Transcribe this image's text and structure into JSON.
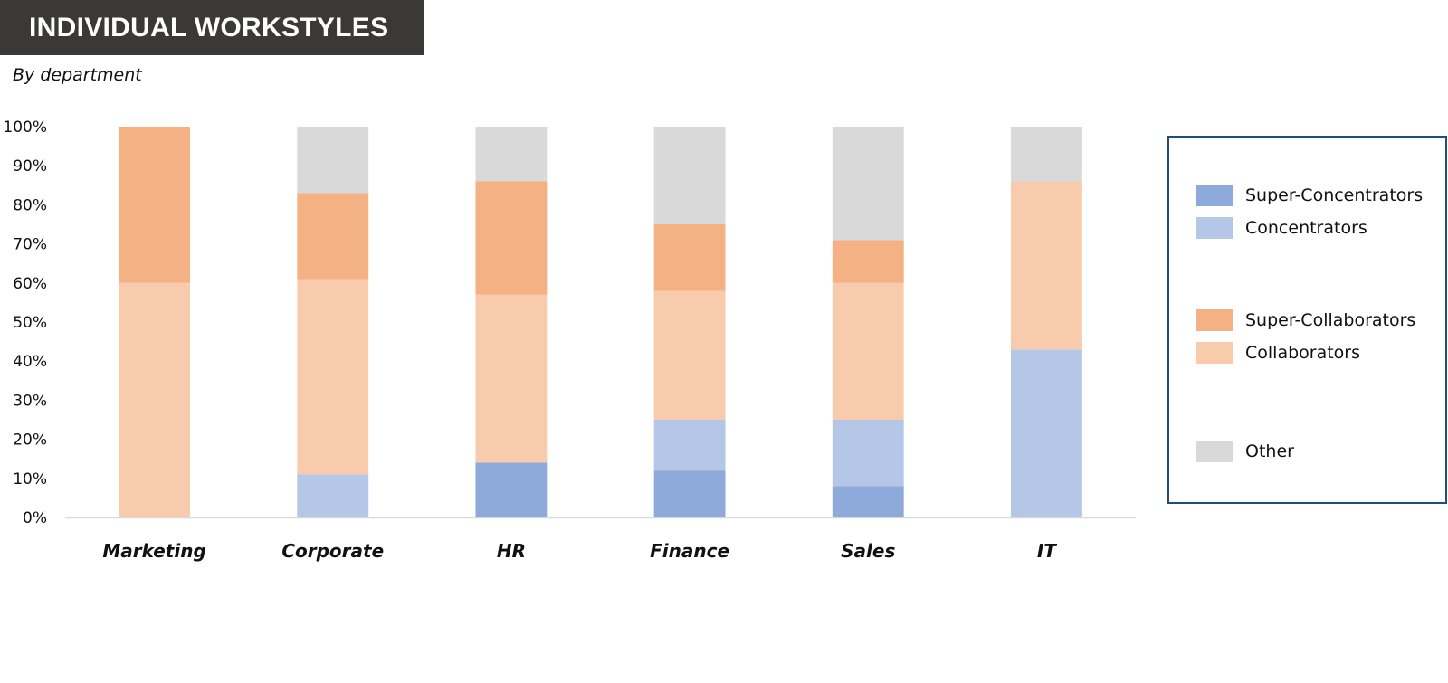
{
  "header": {
    "title": "INDIVIDUAL WORKSTYLES",
    "subtitle": "By department"
  },
  "colors": {
    "Super-Concentrators": "#8eaadb",
    "Concentrators": "#b4c7e7",
    "Super-Collaborators": "#f4b183",
    "Collaborators": "#f8cbad",
    "Other": "#d9d9d9",
    "title_bg": "#3b3936",
    "legend_border": "#1f4e79"
  },
  "chart_data": {
    "type": "bar",
    "stacked": true,
    "categories": [
      "Marketing",
      "Corporate",
      "HR",
      "Finance",
      "Sales",
      "IT"
    ],
    "series": [
      {
        "name": "Super-Concentrators",
        "values": [
          0,
          0,
          14,
          12,
          8,
          0
        ]
      },
      {
        "name": "Concentrators",
        "values": [
          0,
          11,
          0,
          13,
          17,
          43
        ]
      },
      {
        "name": "Collaborators",
        "values": [
          60,
          50,
          43,
          33,
          35,
          43
        ]
      },
      {
        "name": "Super-Collaborators",
        "values": [
          40,
          22,
          29,
          17,
          11,
          0
        ]
      },
      {
        "name": "Other",
        "values": [
          0,
          17,
          14,
          25,
          29,
          14
        ]
      }
    ],
    "yticks": [
      "0%",
      "10%",
      "20%",
      "30%",
      "40%",
      "50%",
      "60%",
      "70%",
      "80%",
      "90%",
      "100%"
    ],
    "ylim": [
      0,
      100
    ],
    "grid": false,
    "legend_position": "right",
    "legend": [
      {
        "name": "Super-Concentrators",
        "group": 1
      },
      {
        "name": "Concentrators",
        "group": 1
      },
      {
        "name": "Super-Collaborators",
        "group": 2
      },
      {
        "name": "Collaborators",
        "group": 2
      },
      {
        "name": "Other",
        "group": 3
      }
    ]
  }
}
